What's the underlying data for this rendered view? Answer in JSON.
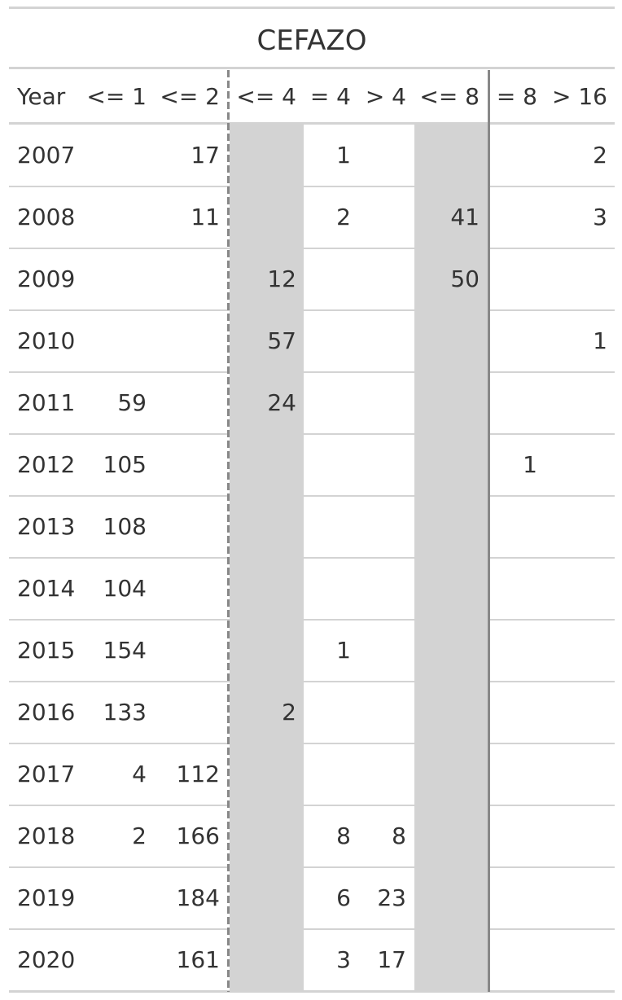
{
  "table": {
    "title": "CEFAZO",
    "columns": [
      "Year",
      "<= 1",
      "<= 2",
      "<= 4",
      "= 4",
      "> 4",
      "<= 8",
      "= 8",
      "> 16"
    ],
    "rows": [
      [
        "2007",
        "",
        "17",
        "",
        "1",
        "",
        "",
        "",
        "2"
      ],
      [
        "2008",
        "",
        "11",
        "",
        "2",
        "",
        "41",
        "",
        "3"
      ],
      [
        "2009",
        "",
        "",
        "12",
        "",
        "",
        "50",
        "",
        ""
      ],
      [
        "2010",
        "",
        "",
        "57",
        "",
        "",
        "",
        "",
        "1"
      ],
      [
        "2011",
        "59",
        "",
        "24",
        "",
        "",
        "",
        "",
        ""
      ],
      [
        "2012",
        "105",
        "",
        "",
        "",
        "",
        "",
        "1",
        ""
      ],
      [
        "2013",
        "108",
        "",
        "",
        "",
        "",
        "",
        "",
        ""
      ],
      [
        "2014",
        "104",
        "",
        "",
        "",
        "",
        "",
        "",
        ""
      ],
      [
        "2015",
        "154",
        "",
        "",
        "1",
        "",
        "",
        "",
        ""
      ],
      [
        "2016",
        "133",
        "",
        "2",
        "",
        "",
        "",
        "",
        ""
      ],
      [
        "2017",
        "4",
        "112",
        "",
        "",
        "",
        "",
        "",
        ""
      ],
      [
        "2018",
        "2",
        "166",
        "",
        "8",
        "8",
        "",
        "",
        ""
      ],
      [
        "2019",
        "",
        "184",
        "",
        "6",
        "23",
        "",
        "",
        ""
      ],
      [
        "2020",
        "",
        "161",
        "",
        "3",
        "17",
        "",
        "",
        ""
      ]
    ],
    "shade_color": "#d3d3d3",
    "separator_color": "#888888",
    "text_color": "#333333"
  }
}
